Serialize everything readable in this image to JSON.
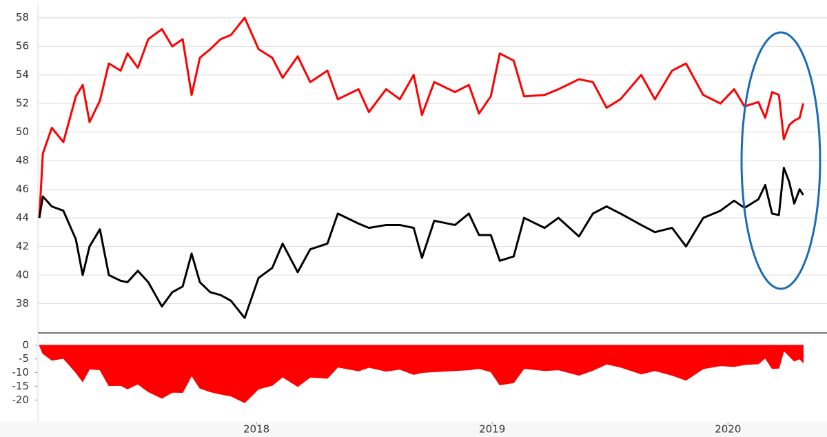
{
  "chart_data": [
    {
      "type": "line",
      "grid": true,
      "xlim": [
        2017.073,
        2020.42
      ],
      "ylim": [
        36,
        59
      ],
      "yticks": [
        38,
        40,
        42,
        44,
        46,
        48,
        50,
        52,
        54,
        56,
        58
      ],
      "x": [
        2017.079,
        2017.094,
        2017.132,
        2017.181,
        2017.234,
        2017.263,
        2017.292,
        2017.336,
        2017.374,
        2017.424,
        2017.453,
        2017.497,
        2017.541,
        2017.599,
        2017.643,
        2017.687,
        2017.725,
        2017.76,
        2017.804,
        2017.848,
        2017.892,
        2017.95,
        2018.009,
        2018.067,
        2018.111,
        2018.175,
        2018.228,
        2018.301,
        2018.345,
        2018.433,
        2018.477,
        2018.55,
        2018.608,
        2018.667,
        2018.702,
        2018.754,
        2018.842,
        2018.901,
        2018.944,
        2018.994,
        2019.032,
        2019.091,
        2019.135,
        2019.222,
        2019.281,
        2019.368,
        2019.427,
        2019.485,
        2019.544,
        2019.632,
        2019.69,
        2019.763,
        2019.822,
        2019.895,
        2019.968,
        2020.026,
        2020.07,
        2020.129,
        2020.158,
        2020.187,
        2020.216,
        2020.237,
        2020.26,
        2020.281,
        2020.304,
        2020.319
      ],
      "series": [
        {
          "color": "#ff0000",
          "values": [
            44,
            48.5,
            50.3,
            49.3,
            52.5,
            53.3,
            50.7,
            52.2,
            54.8,
            54.3,
            55.5,
            54.5,
            56.5,
            57.2,
            56,
            56.5,
            52.6,
            55.2,
            55.8,
            56.5,
            56.8,
            58,
            55.8,
            55.2,
            53.8,
            55.3,
            53.5,
            54.3,
            52.3,
            53,
            51.4,
            53,
            52.3,
            54,
            51.2,
            53.5,
            52.8,
            53.3,
            51.3,
            52.5,
            55.5,
            55,
            52.5,
            52.6,
            53,
            53.7,
            53.5,
            51.7,
            52.3,
            54,
            52.3,
            54.3,
            54.8,
            52.6,
            52,
            53,
            51.8,
            52.1,
            51,
            52.8,
            52.6,
            49.5,
            50.5,
            50.8,
            51,
            52
          ]
        },
        {
          "color": "#000000",
          "values": [
            44,
            45.5,
            44.8,
            44.5,
            42.5,
            40,
            42,
            43.2,
            40,
            39.6,
            39.5,
            40.3,
            39.5,
            37.8,
            38.8,
            39.2,
            41.5,
            39.5,
            38.8,
            38.6,
            38.2,
            37,
            39.8,
            40.5,
            42.2,
            40.2,
            41.8,
            42.2,
            44.3,
            43.6,
            43.3,
            43.5,
            43.5,
            43.3,
            41.2,
            43.8,
            43.5,
            44.3,
            42.8,
            42.8,
            41,
            41.3,
            44,
            43.3,
            44,
            42.7,
            44.3,
            44.8,
            44.3,
            43.5,
            43,
            43.3,
            42,
            44,
            44.5,
            45.2,
            44.7,
            45.3,
            46.3,
            44.3,
            44.2,
            47.5,
            46.5,
            45,
            46,
            45.6
          ]
        }
      ]
    },
    {
      "type": "area",
      "color": "#ff0000",
      "xlim": [
        2017.073,
        2020.42
      ],
      "xticks": [
        2018,
        2019,
        2020
      ],
      "ylim": [
        -28,
        4
      ],
      "yticks": [
        0,
        -5,
        -10,
        -15,
        -20
      ],
      "x": [
        2017.079,
        2017.094,
        2017.132,
        2017.181,
        2017.234,
        2017.263,
        2017.292,
        2017.336,
        2017.374,
        2017.424,
        2017.453,
        2017.497,
        2017.541,
        2017.599,
        2017.643,
        2017.687,
        2017.725,
        2017.76,
        2017.804,
        2017.848,
        2017.892,
        2017.95,
        2018.009,
        2018.067,
        2018.111,
        2018.175,
        2018.228,
        2018.301,
        2018.345,
        2018.433,
        2018.477,
        2018.55,
        2018.608,
        2018.667,
        2018.702,
        2018.754,
        2018.842,
        2018.901,
        2018.944,
        2018.994,
        2019.032,
        2019.091,
        2019.135,
        2019.222,
        2019.281,
        2019.368,
        2019.427,
        2019.485,
        2019.544,
        2019.632,
        2019.69,
        2019.763,
        2019.822,
        2019.895,
        2019.968,
        2020.026,
        2020.07,
        2020.129,
        2020.158,
        2020.187,
        2020.216,
        2020.237,
        2020.26,
        2020.281,
        2020.304,
        2020.319
      ],
      "values": [
        0,
        -3,
        -5.5,
        -4.8,
        -10,
        -13.3,
        -8.7,
        -9,
        -14.8,
        -14.7,
        -16,
        -14.2,
        -17,
        -19.4,
        -17.2,
        -17.3,
        -11.1,
        -15.7,
        -17,
        -17.9,
        -18.6,
        -21,
        -16,
        -14.7,
        -11.6,
        -15.1,
        -11.7,
        -12.1,
        -8,
        -9.4,
        -8.1,
        -9.5,
        -8.8,
        -10.7,
        -10,
        -9.7,
        -9.3,
        -9,
        -8.5,
        -9.7,
        -14.5,
        -13.7,
        -8.5,
        -9.3,
        -9,
        -11,
        -9.2,
        -6.9,
        -8,
        -10.5,
        -9.3,
        -11,
        -12.8,
        -8.6,
        -7.5,
        -7.8,
        -7.1,
        -6.8,
        -4.7,
        -8.5,
        -8.4,
        -2,
        -4,
        -5.8,
        -5,
        -6.4
      ]
    }
  ]
}
